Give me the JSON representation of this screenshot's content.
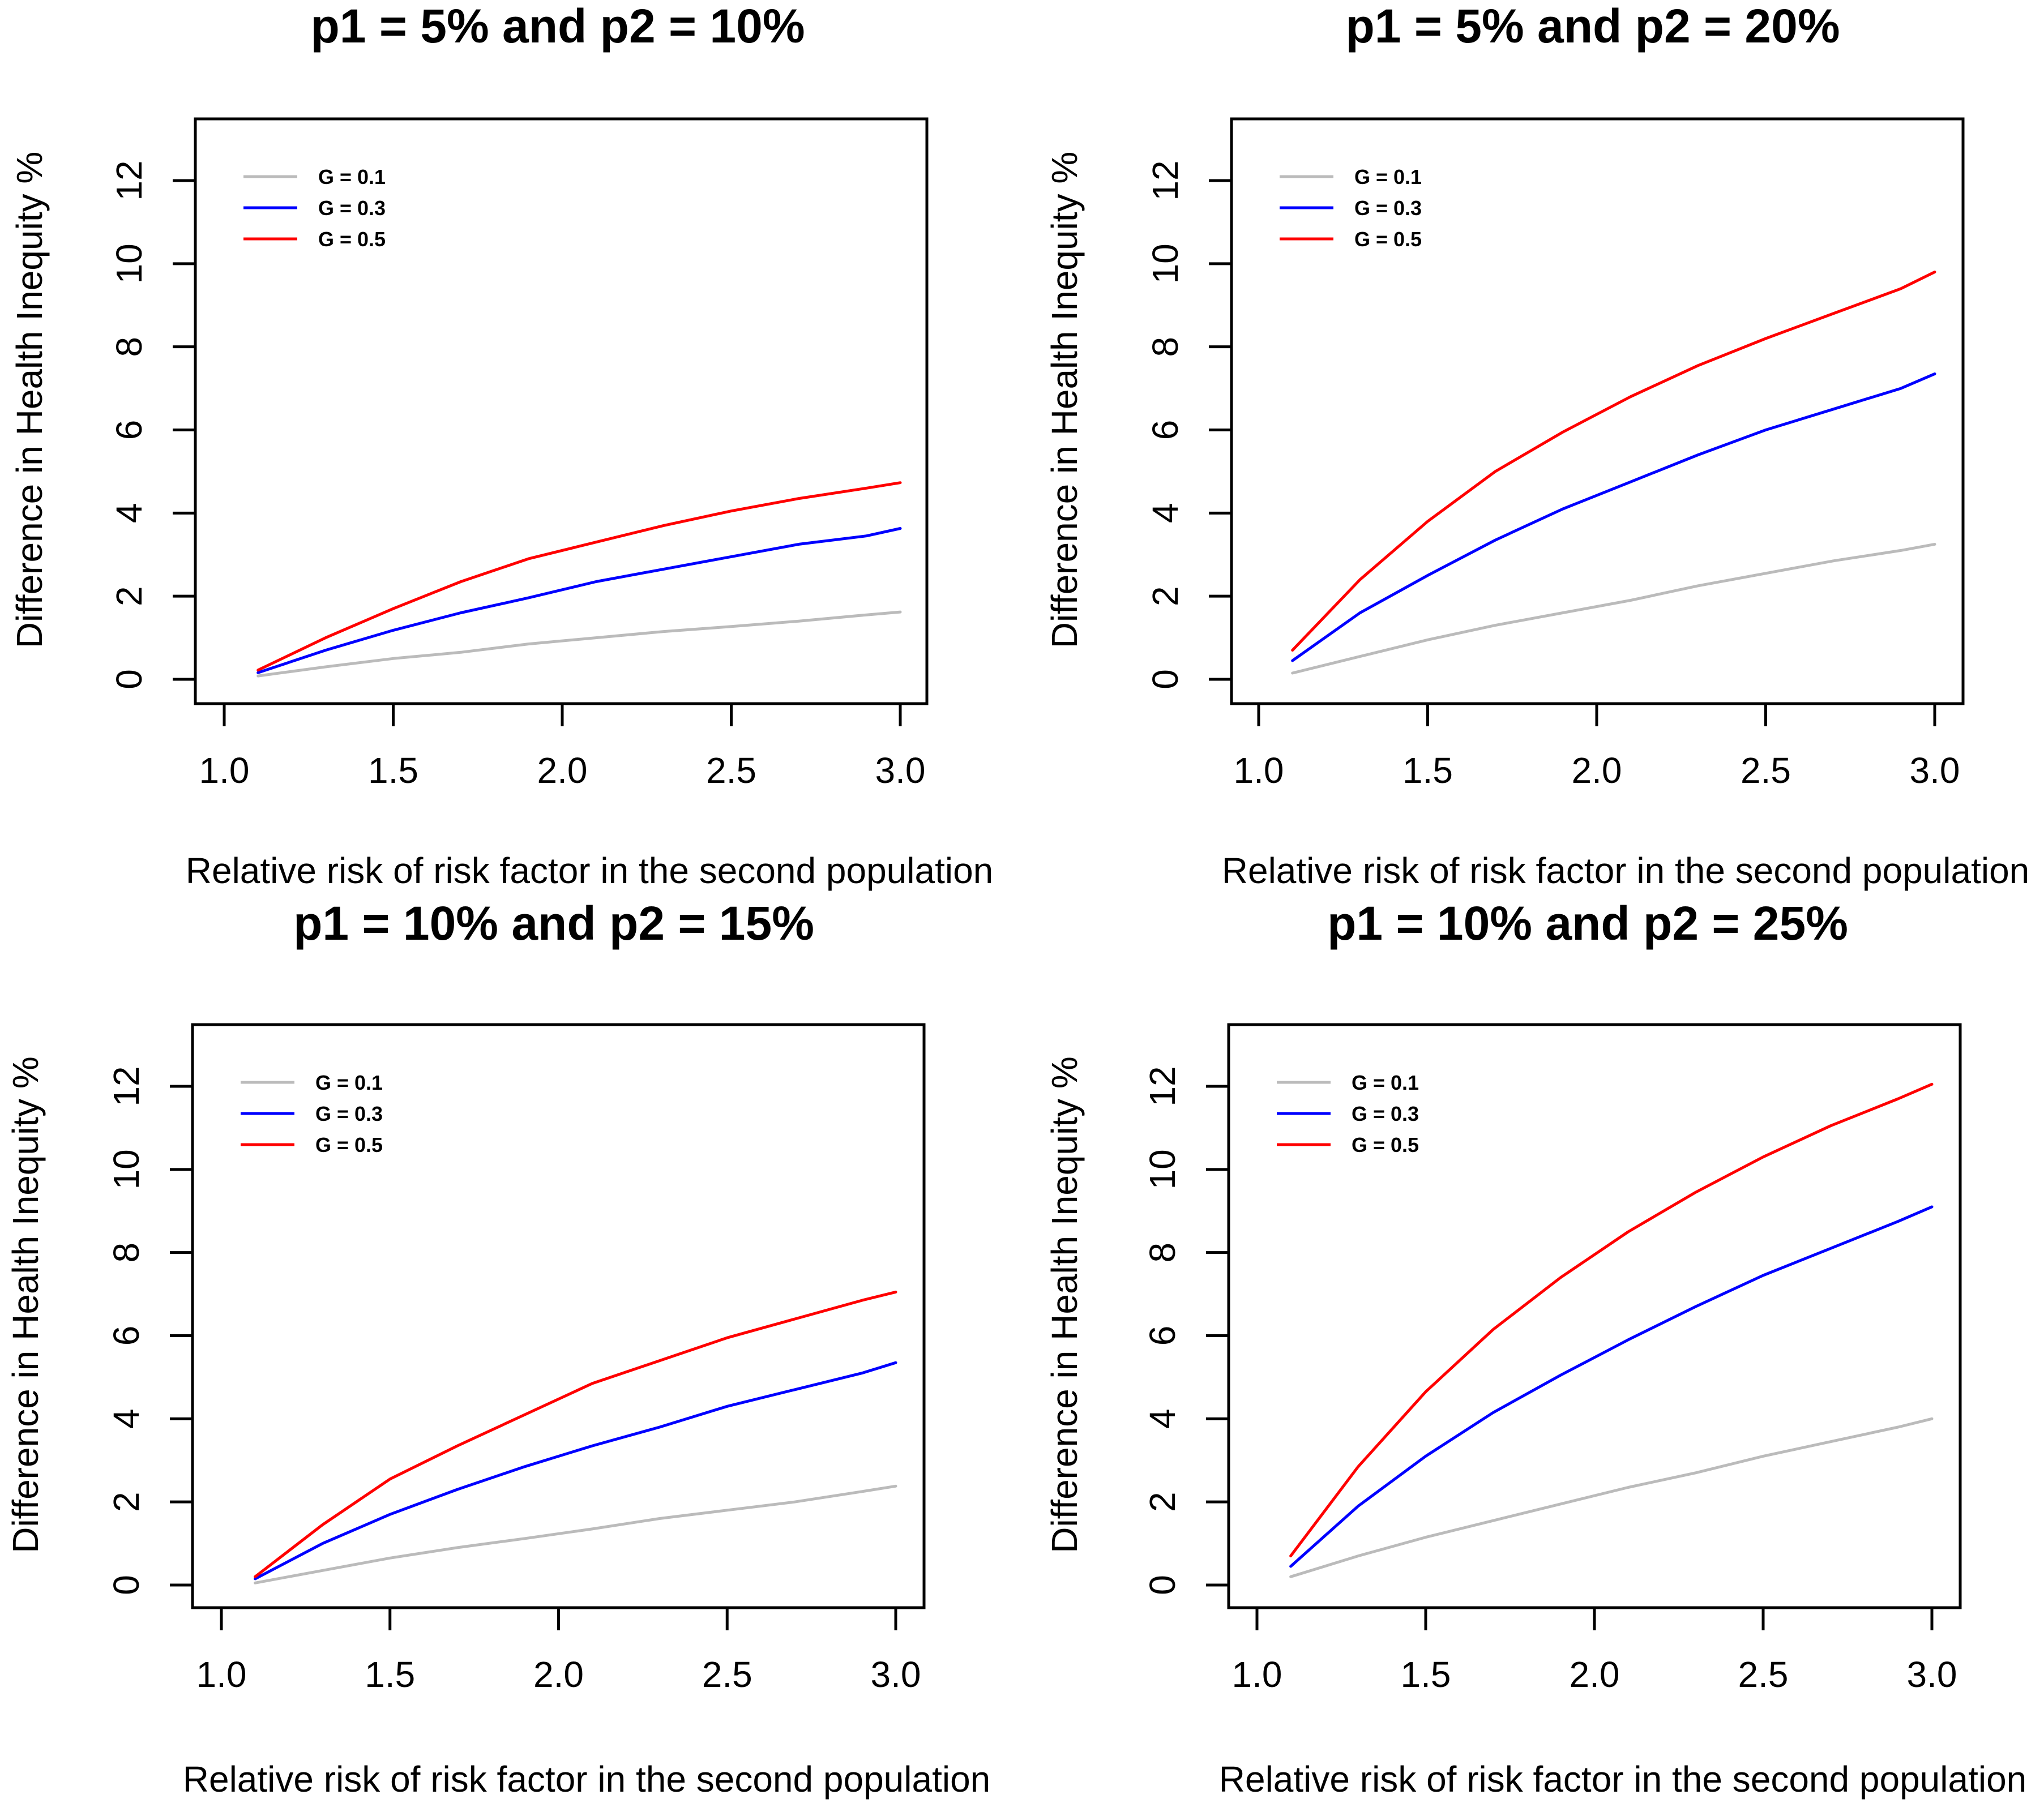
{
  "chart_data": [
    {
      "type": "line",
      "title": "p1 = 5% and p2 = 10%",
      "xlabel": "Relative risk of risk factor in the second population",
      "ylabel": "Difference in Health Inequity %",
      "xlim": [
        1.0,
        3.0
      ],
      "ylim": [
        0,
        13
      ],
      "xticks": [
        "1.0",
        "1.5",
        "2.0",
        "2.5",
        "3.0"
      ],
      "yticks": [
        "0",
        "2",
        "4",
        "6",
        "8",
        "10",
        "12"
      ],
      "legend_position": "top-left",
      "x": [
        1.1,
        1.3,
        1.5,
        1.7,
        1.9,
        2.1,
        2.3,
        2.5,
        2.7,
        2.9,
        3.0
      ],
      "series": [
        {
          "name": "G = 0.1",
          "color": "#bbbbbb",
          "values": [
            0.08,
            0.3,
            0.5,
            0.65,
            0.85,
            1.0,
            1.15,
            1.27,
            1.4,
            1.55,
            1.62
          ]
        },
        {
          "name": "G = 0.3",
          "color": "#0000ff",
          "values": [
            0.16,
            0.7,
            1.18,
            1.6,
            1.96,
            2.35,
            2.65,
            2.95,
            3.25,
            3.45,
            3.63
          ]
        },
        {
          "name": "G = 0.5",
          "color": "#ff0000",
          "values": [
            0.22,
            1.0,
            1.7,
            2.35,
            2.9,
            3.3,
            3.7,
            4.05,
            4.35,
            4.6,
            4.73
          ]
        }
      ]
    },
    {
      "type": "line",
      "title": "p1 = 5% and p2 = 20%",
      "xlabel": "Relative risk of risk factor in the second population",
      "ylabel": "Difference in Health Inequity %",
      "xlim": [
        1.0,
        3.0
      ],
      "ylim": [
        0,
        13
      ],
      "xticks": [
        "1.0",
        "1.5",
        "2.0",
        "2.5",
        "3.0"
      ],
      "yticks": [
        "0",
        "2",
        "4",
        "6",
        "8",
        "10",
        "12"
      ],
      "legend_position": "top-left",
      "x": [
        1.1,
        1.3,
        1.5,
        1.7,
        1.9,
        2.1,
        2.3,
        2.5,
        2.7,
        2.9,
        3.0
      ],
      "series": [
        {
          "name": "G = 0.1",
          "color": "#bbbbbb",
          "values": [
            0.15,
            0.55,
            0.95,
            1.3,
            1.6,
            1.9,
            2.25,
            2.55,
            2.85,
            3.1,
            3.25
          ]
        },
        {
          "name": "G = 0.3",
          "color": "#0000ff",
          "values": [
            0.45,
            1.6,
            2.5,
            3.35,
            4.1,
            4.75,
            5.4,
            6.0,
            6.5,
            7.0,
            7.35
          ]
        },
        {
          "name": "G = 0.5",
          "color": "#ff0000",
          "values": [
            0.7,
            2.4,
            3.8,
            5.0,
            5.95,
            6.8,
            7.55,
            8.2,
            8.8,
            9.4,
            9.8
          ]
        }
      ]
    },
    {
      "type": "line",
      "title": "p1 = 10% and p2 = 15%",
      "xlabel": "Relative risk of risk factor in the second population",
      "ylabel": "Difference in Health Inequity %",
      "xlim": [
        1.0,
        3.0
      ],
      "ylim": [
        0,
        13
      ],
      "xticks": [
        "1.0",
        "1.5",
        "2.0",
        "2.5",
        "3.0"
      ],
      "yticks": [
        "0",
        "2",
        "4",
        "6",
        "8",
        "10",
        "12"
      ],
      "legend_position": "top-left",
      "x": [
        1.1,
        1.3,
        1.5,
        1.7,
        1.9,
        2.1,
        2.3,
        2.5,
        2.7,
        2.9,
        3.0
      ],
      "series": [
        {
          "name": "G = 0.1",
          "color": "#bbbbbb",
          "values": [
            0.05,
            0.35,
            0.65,
            0.9,
            1.12,
            1.35,
            1.6,
            1.8,
            2.0,
            2.25,
            2.38
          ]
        },
        {
          "name": "G = 0.3",
          "color": "#0000ff",
          "values": [
            0.15,
            1.0,
            1.7,
            2.3,
            2.85,
            3.35,
            3.8,
            4.3,
            4.7,
            5.1,
            5.35
          ]
        },
        {
          "name": "G = 0.5",
          "color": "#ff0000",
          "values": [
            0.2,
            1.45,
            2.55,
            3.35,
            4.1,
            4.85,
            5.4,
            5.95,
            6.4,
            6.85,
            7.05
          ]
        }
      ]
    },
    {
      "type": "line",
      "title": "p1 = 10% and p2 = 25%",
      "xlabel": "Relative risk of risk factor in the second population",
      "ylabel": "Difference in Health Inequity %",
      "xlim": [
        1.0,
        3.0
      ],
      "ylim": [
        0,
        13
      ],
      "xticks": [
        "1.0",
        "1.5",
        "2.0",
        "2.5",
        "3.0"
      ],
      "yticks": [
        "0",
        "2",
        "4",
        "6",
        "8",
        "10",
        "12"
      ],
      "legend_position": "top-left",
      "x": [
        1.1,
        1.3,
        1.5,
        1.7,
        1.9,
        2.1,
        2.3,
        2.5,
        2.7,
        2.9,
        3.0
      ],
      "series": [
        {
          "name": "G = 0.1",
          "color": "#bbbbbb",
          "values": [
            0.2,
            0.7,
            1.15,
            1.55,
            1.95,
            2.35,
            2.7,
            3.1,
            3.45,
            3.8,
            4.0
          ]
        },
        {
          "name": "G = 0.3",
          "color": "#0000ff",
          "values": [
            0.45,
            1.9,
            3.1,
            4.15,
            5.05,
            5.9,
            6.7,
            7.45,
            8.1,
            8.75,
            9.1
          ]
        },
        {
          "name": "G = 0.5",
          "color": "#ff0000",
          "values": [
            0.7,
            2.85,
            4.65,
            6.15,
            7.4,
            8.5,
            9.45,
            10.3,
            11.05,
            11.7,
            12.05
          ]
        }
      ]
    }
  ]
}
